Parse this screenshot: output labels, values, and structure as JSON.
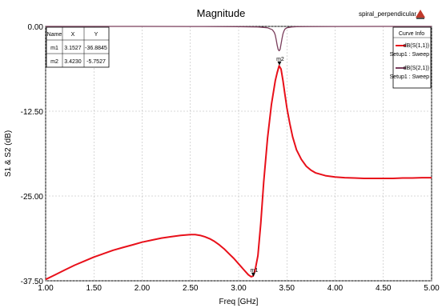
{
  "app": {
    "design_name": "spiral_perpendicular",
    "logo_icon": "ansys-logo-icon"
  },
  "marker_table": {
    "headers": [
      "Name",
      "X",
      "Y"
    ],
    "rows": [
      [
        "m1",
        "3.1527",
        "-36.8845"
      ],
      [
        "m2",
        "3.4230",
        "-5.7527"
      ]
    ]
  },
  "legend": {
    "title": "Curve Info",
    "entries": [
      {
        "name": "dB(S(1,1))",
        "setup": "Setup1 : Sweep",
        "color": "#e8101a"
      },
      {
        "name": "dB(S(2,1))",
        "setup": "Setup1 : Sweep",
        "color": "#7a3e5c"
      }
    ]
  },
  "chart_data": {
    "type": "line",
    "title": "Magnitude",
    "xlabel": "Freq [GHz]",
    "ylabel": "S1 & S2 (dB)",
    "xlim": [
      1.0,
      5.0
    ],
    "ylim": [
      -37.5,
      0.0
    ],
    "xticks": [
      "1.00",
      "1.50",
      "2.00",
      "2.50",
      "3.00",
      "3.50",
      "4.00",
      "4.50",
      "5.00"
    ],
    "yticks": [
      "0.00",
      "-12.50",
      "-25.00",
      "-37.50"
    ],
    "grid": true,
    "legend_position": "top-right",
    "markers": [
      {
        "name": "m1",
        "x": 3.1527,
        "y": -36.8845
      },
      {
        "name": "m2",
        "x": 3.423,
        "y": -5.7527
      }
    ],
    "series": [
      {
        "name": "dB(S(1,1))",
        "color": "#e8101a",
        "x": [
          1.0,
          1.1,
          1.2,
          1.3,
          1.4,
          1.5,
          1.6,
          1.7,
          1.8,
          1.9,
          2.0,
          2.1,
          2.2,
          2.3,
          2.4,
          2.5,
          2.55,
          2.6,
          2.65,
          2.7,
          2.75,
          2.8,
          2.85,
          2.9,
          2.95,
          3.0,
          3.05,
          3.1,
          3.13,
          3.15,
          3.17,
          3.2,
          3.23,
          3.26,
          3.3,
          3.34,
          3.38,
          3.4,
          3.42,
          3.44,
          3.46,
          3.48,
          3.5,
          3.53,
          3.56,
          3.6,
          3.65,
          3.7,
          3.75,
          3.8,
          3.9,
          4.0,
          4.1,
          4.2,
          4.3,
          4.4,
          4.5,
          4.6,
          4.7,
          4.8,
          4.9,
          5.0
        ],
        "y": [
          -37.3,
          -36.6,
          -35.9,
          -35.2,
          -34.6,
          -34.0,
          -33.5,
          -33.0,
          -32.6,
          -32.2,
          -31.8,
          -31.5,
          -31.2,
          -31.0,
          -30.8,
          -30.7,
          -30.7,
          -30.8,
          -31.0,
          -31.3,
          -31.7,
          -32.2,
          -32.8,
          -33.5,
          -34.2,
          -35.0,
          -35.8,
          -36.6,
          -36.9,
          -36.8,
          -36.0,
          -33.8,
          -29.0,
          -23.0,
          -16.5,
          -11.5,
          -8.0,
          -6.8,
          -5.8,
          -6.3,
          -8.0,
          -10.0,
          -12.0,
          -14.3,
          -16.3,
          -18.2,
          -19.6,
          -20.6,
          -21.2,
          -21.6,
          -22.0,
          -22.2,
          -22.3,
          -22.35,
          -22.4,
          -22.4,
          -22.4,
          -22.4,
          -22.35,
          -22.35,
          -22.3,
          -22.3
        ]
      },
      {
        "name": "dB(S(2,1))",
        "color": "#7a3e5c",
        "x": [
          1.0,
          1.5,
          2.0,
          2.5,
          3.0,
          3.2,
          3.3,
          3.35,
          3.37,
          3.38,
          3.39,
          3.4,
          3.41,
          3.42,
          3.43,
          3.44,
          3.45,
          3.46,
          3.47,
          3.48,
          3.5,
          3.55,
          3.6,
          4.0,
          4.5,
          5.0
        ],
        "y": [
          0.0,
          0.0,
          0.0,
          -0.01,
          -0.03,
          -0.08,
          -0.2,
          -0.5,
          -0.9,
          -1.3,
          -2.0,
          -2.8,
          -3.4,
          -3.6,
          -3.4,
          -2.6,
          -1.8,
          -1.1,
          -0.7,
          -0.4,
          -0.2,
          -0.08,
          -0.04,
          -0.01,
          0.0,
          0.0
        ]
      }
    ]
  }
}
